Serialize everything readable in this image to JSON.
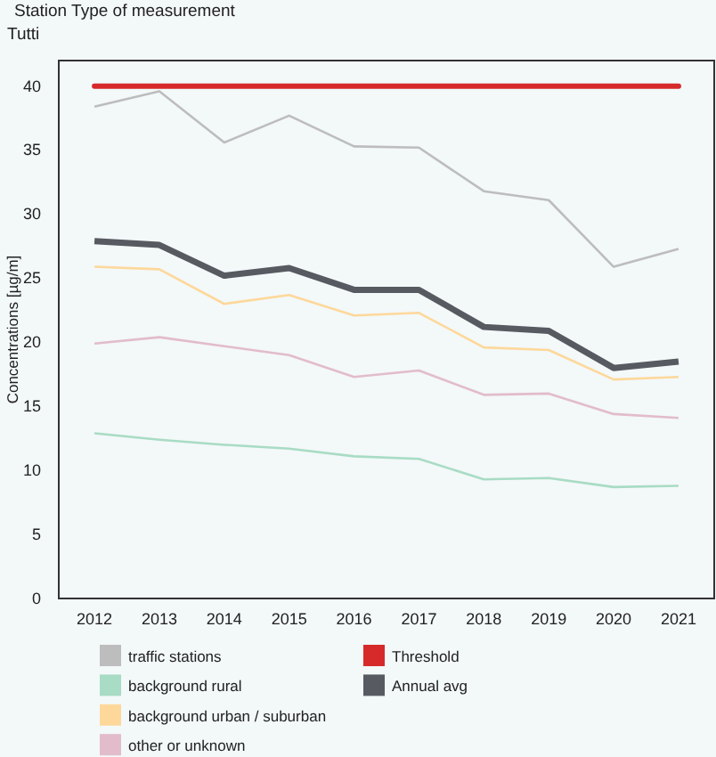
{
  "chart_data": {
    "type": "line",
    "title": "Station Type of measurement",
    "subtitle": "Tutti",
    "ylabel": "Concentrations [µg/m]",
    "categories": [
      "2012",
      "2013",
      "2014",
      "2015",
      "2016",
      "2017",
      "2018",
      "2019",
      "2020",
      "2021"
    ],
    "series": [
      {
        "name": "traffic stations",
        "color": "#bdbdbd",
        "values": [
          38.4,
          39.6,
          35.6,
          37.7,
          35.3,
          35.2,
          31.8,
          31.1,
          25.9,
          27.3
        ]
      },
      {
        "name": "background rural",
        "color": "#a8dcc4",
        "values": [
          12.9,
          12.4,
          12.0,
          11.7,
          11.1,
          10.9,
          9.3,
          9.4,
          8.7,
          8.8
        ]
      },
      {
        "name": "background urban / suburban",
        "color": "#fdd89a",
        "values": [
          25.9,
          25.7,
          23.0,
          23.7,
          22.1,
          22.3,
          19.6,
          19.4,
          17.1,
          17.3
        ]
      },
      {
        "name": "other or unknown",
        "color": "#e2bccb",
        "values": [
          19.9,
          20.4,
          19.7,
          19.0,
          17.3,
          17.8,
          15.9,
          16.0,
          14.4,
          14.1
        ]
      },
      {
        "name": "Annual avg",
        "color": "#575a61",
        "values": [
          27.9,
          27.6,
          25.2,
          25.8,
          24.1,
          24.1,
          21.2,
          20.9,
          18.0,
          18.5
        ]
      }
    ],
    "ref_lines": [
      {
        "axis": "y",
        "value": 40,
        "label": "Threshold",
        "color": "#d62a2a"
      }
    ],
    "ylim": [
      0,
      42
    ],
    "yticks": [
      0,
      5,
      10,
      15,
      20,
      25,
      30,
      35,
      40
    ],
    "grid": false,
    "legend": "bottom",
    "marker": "none"
  }
}
